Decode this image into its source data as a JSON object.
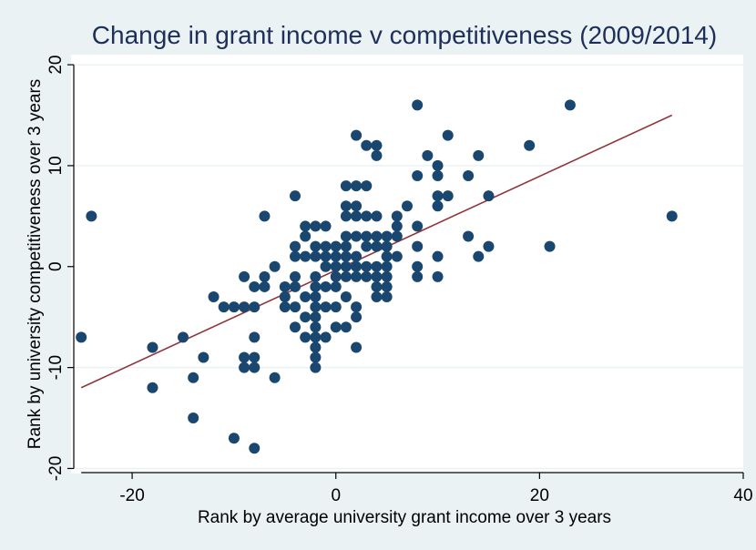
{
  "chart_data": {
    "type": "scatter",
    "title": "Change in grant income v competitiveness (2009/2014)",
    "xlabel": "Rank by average university grant income over 3 years",
    "ylabel": "Rank by university competitiveness over 3 years",
    "xlim": [
      -26,
      40
    ],
    "ylim": [
      -20.5,
      21
    ],
    "xticks": [
      "-20",
      "0",
      "20",
      "40"
    ],
    "yticks": [
      "20",
      "10",
      "0",
      "-10",
      "-20"
    ],
    "grid": "horizontal",
    "colors": {
      "background": "#eaf2f3",
      "plot_background": "#ffffff",
      "points": "#1a476f",
      "fit_line": "#90353b",
      "title": "#1e2f59",
      "grid": "#eaf2f3"
    },
    "fit_line": {
      "x": [
        -25,
        33
      ],
      "y": [
        -12,
        15
      ]
    },
    "points": [
      {
        "x": -25,
        "y": -7
      },
      {
        "x": -24,
        "y": 5
      },
      {
        "x": -18,
        "y": -8
      },
      {
        "x": -18,
        "y": -12
      },
      {
        "x": -15,
        "y": -7
      },
      {
        "x": -14,
        "y": -11
      },
      {
        "x": -14,
        "y": -15
      },
      {
        "x": -13,
        "y": -9
      },
      {
        "x": -12,
        "y": -3
      },
      {
        "x": -11,
        "y": -4
      },
      {
        "x": -10,
        "y": -4
      },
      {
        "x": -10,
        "y": -17
      },
      {
        "x": -9,
        "y": -1
      },
      {
        "x": -9,
        "y": -4
      },
      {
        "x": -9,
        "y": -9
      },
      {
        "x": -9,
        "y": -10
      },
      {
        "x": -8,
        "y": -2
      },
      {
        "x": -8,
        "y": -4
      },
      {
        "x": -8,
        "y": -7
      },
      {
        "x": -8,
        "y": -9
      },
      {
        "x": -8,
        "y": -10
      },
      {
        "x": -8,
        "y": -18
      },
      {
        "x": -7,
        "y": 5
      },
      {
        "x": -7,
        "y": -1
      },
      {
        "x": -7,
        "y": -2
      },
      {
        "x": -6,
        "y": 0
      },
      {
        "x": -6,
        "y": -11
      },
      {
        "x": -5,
        "y": -2
      },
      {
        "x": -5,
        "y": -3
      },
      {
        "x": -5,
        "y": -4
      },
      {
        "x": -4,
        "y": 7
      },
      {
        "x": -4,
        "y": 2
      },
      {
        "x": -4,
        "y": 1
      },
      {
        "x": -4,
        "y": -1
      },
      {
        "x": -4,
        "y": -2
      },
      {
        "x": -4,
        "y": -4
      },
      {
        "x": -4,
        "y": -6
      },
      {
        "x": -3,
        "y": 4
      },
      {
        "x": -3,
        "y": 3
      },
      {
        "x": -3,
        "y": 1
      },
      {
        "x": -3,
        "y": -3
      },
      {
        "x": -3,
        "y": -5
      },
      {
        "x": -3,
        "y": -7
      },
      {
        "x": -2,
        "y": 4
      },
      {
        "x": -2,
        "y": 2
      },
      {
        "x": -2,
        "y": 1
      },
      {
        "x": -2,
        "y": -1
      },
      {
        "x": -2,
        "y": -2
      },
      {
        "x": -2,
        "y": -3
      },
      {
        "x": -2,
        "y": -4
      },
      {
        "x": -2,
        "y": -5
      },
      {
        "x": -2,
        "y": -6
      },
      {
        "x": -2,
        "y": -7
      },
      {
        "x": -2,
        "y": -8
      },
      {
        "x": -2,
        "y": -9
      },
      {
        "x": -2,
        "y": -10
      },
      {
        "x": -1,
        "y": 4
      },
      {
        "x": -1,
        "y": 2
      },
      {
        "x": -1,
        "y": 1
      },
      {
        "x": -1,
        "y": 0
      },
      {
        "x": -1,
        "y": -2
      },
      {
        "x": -1,
        "y": -4
      },
      {
        "x": -1,
        "y": -7
      },
      {
        "x": 0,
        "y": 2
      },
      {
        "x": 0,
        "y": 1
      },
      {
        "x": 0,
        "y": 0
      },
      {
        "x": 0,
        "y": -1
      },
      {
        "x": 0,
        "y": -2
      },
      {
        "x": 0,
        "y": -4
      },
      {
        "x": 0,
        "y": -6
      },
      {
        "x": 1,
        "y": 8
      },
      {
        "x": 1,
        "y": 6
      },
      {
        "x": 1,
        "y": 5
      },
      {
        "x": 1,
        "y": 3
      },
      {
        "x": 1,
        "y": 2
      },
      {
        "x": 1,
        "y": 1
      },
      {
        "x": 1,
        "y": 0
      },
      {
        "x": 1,
        "y": -1
      },
      {
        "x": 1,
        "y": -3
      },
      {
        "x": 1,
        "y": -6
      },
      {
        "x": 2,
        "y": 13
      },
      {
        "x": 2,
        "y": 8
      },
      {
        "x": 2,
        "y": 6
      },
      {
        "x": 2,
        "y": 5
      },
      {
        "x": 2,
        "y": 3
      },
      {
        "x": 2,
        "y": 1
      },
      {
        "x": 2,
        "y": 0
      },
      {
        "x": 2,
        "y": -1
      },
      {
        "x": 2,
        "y": -4
      },
      {
        "x": 2,
        "y": -5
      },
      {
        "x": 2,
        "y": -8
      },
      {
        "x": 3,
        "y": 12
      },
      {
        "x": 3,
        "y": 8
      },
      {
        "x": 3,
        "y": 5
      },
      {
        "x": 3,
        "y": 3
      },
      {
        "x": 3,
        "y": 2
      },
      {
        "x": 3,
        "y": 0
      },
      {
        "x": 3,
        "y": -1
      },
      {
        "x": 4,
        "y": 12
      },
      {
        "x": 4,
        "y": 11
      },
      {
        "x": 4,
        "y": 5
      },
      {
        "x": 4,
        "y": 3
      },
      {
        "x": 4,
        "y": 2
      },
      {
        "x": 4,
        "y": 0
      },
      {
        "x": 4,
        "y": -1
      },
      {
        "x": 4,
        "y": -2
      },
      {
        "x": 4,
        "y": -3
      },
      {
        "x": 5,
        "y": 3
      },
      {
        "x": 5,
        "y": 2
      },
      {
        "x": 5,
        "y": 1
      },
      {
        "x": 5,
        "y": 0
      },
      {
        "x": 5,
        "y": -1
      },
      {
        "x": 5,
        "y": -2
      },
      {
        "x": 5,
        "y": -3
      },
      {
        "x": 6,
        "y": 5
      },
      {
        "x": 6,
        "y": 4
      },
      {
        "x": 6,
        "y": 3
      },
      {
        "x": 6,
        "y": 1
      },
      {
        "x": 7,
        "y": 6
      },
      {
        "x": 8,
        "y": 16
      },
      {
        "x": 8,
        "y": 9
      },
      {
        "x": 8,
        "y": 4
      },
      {
        "x": 8,
        "y": 2
      },
      {
        "x": 8,
        "y": 0
      },
      {
        "x": 8,
        "y": -1
      },
      {
        "x": 9,
        "y": 11
      },
      {
        "x": 10,
        "y": 10
      },
      {
        "x": 10,
        "y": 9
      },
      {
        "x": 10,
        "y": 7
      },
      {
        "x": 10,
        "y": 6
      },
      {
        "x": 10,
        "y": 1
      },
      {
        "x": 10,
        "y": -1
      },
      {
        "x": 11,
        "y": 13
      },
      {
        "x": 11,
        "y": 7
      },
      {
        "x": 13,
        "y": 9
      },
      {
        "x": 13,
        "y": 3
      },
      {
        "x": 14,
        "y": 11
      },
      {
        "x": 14,
        "y": 1
      },
      {
        "x": 15,
        "y": 7
      },
      {
        "x": 15,
        "y": 2
      },
      {
        "x": 19,
        "y": 12
      },
      {
        "x": 21,
        "y": 2
      },
      {
        "x": 23,
        "y": 16
      },
      {
        "x": 33,
        "y": 5
      }
    ]
  }
}
